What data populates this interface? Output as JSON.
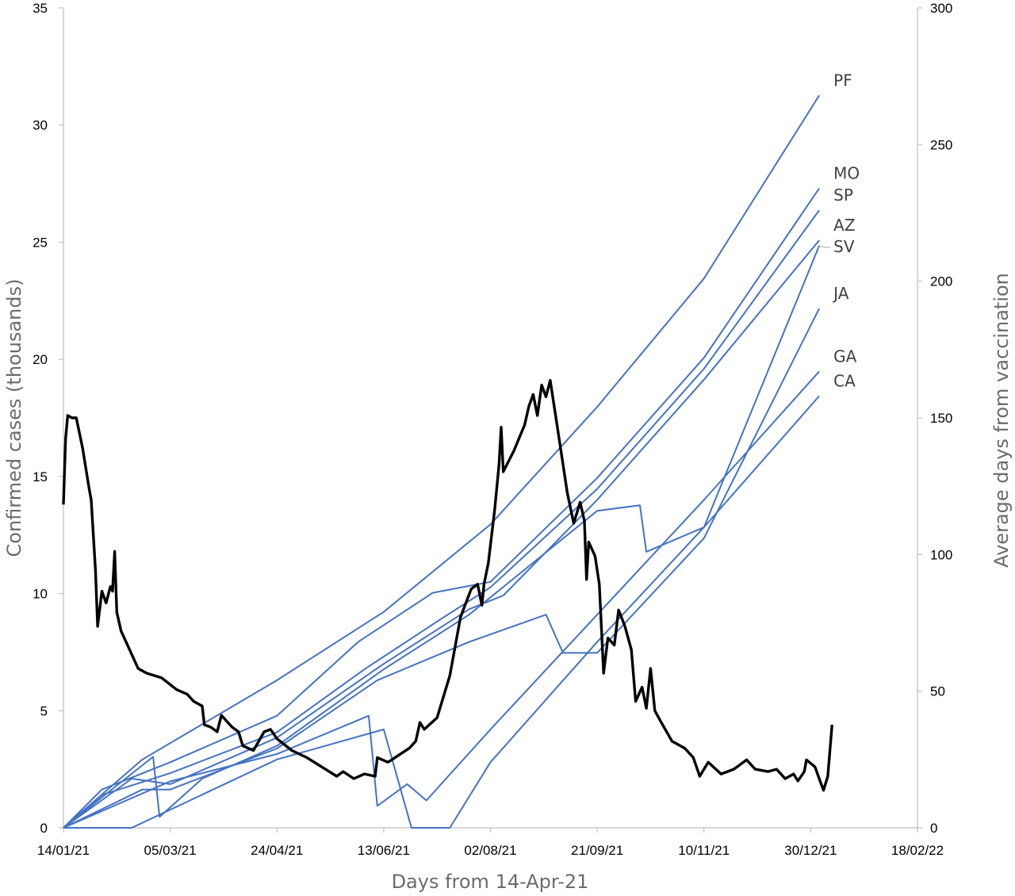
{
  "chart_data": {
    "type": "line",
    "xlabel": "Days from 14-Apr-21",
    "ylabel_left": "Confirmed cases  (thousands)",
    "ylabel_right": "Average days from vaccination",
    "x_tick_labels": [
      "14/01/21",
      "05/03/21",
      "24/04/21",
      "13/06/21",
      "02/08/21",
      "21/09/21",
      "10/11/21",
      "30/12/21",
      "18/02/22"
    ],
    "x_range_dates": [
      "2021-01-14",
      "2022-02-18"
    ],
    "y_left": {
      "min": 0,
      "max": 35,
      "ticks": [
        "0",
        "5",
        "10",
        "15",
        "20",
        "25",
        "30",
        "35"
      ]
    },
    "y_right": {
      "min": 0,
      "max": 300,
      "ticks": [
        "0",
        "50",
        "100",
        "150",
        "200",
        "250",
        "300"
      ]
    },
    "grid": false,
    "colors": {
      "cases": "#000000",
      "vaccines": "#4472c4",
      "axis": "#bfbfbf"
    },
    "cases_series": {
      "axis": "left",
      "points": [
        [
          "2021-01-14",
          13.8
        ],
        [
          "2021-01-15",
          16.6
        ],
        [
          "2021-01-16",
          17.6
        ],
        [
          "2021-01-18",
          17.5
        ],
        [
          "2021-01-20",
          17.5
        ],
        [
          "2021-01-23",
          16.2
        ],
        [
          "2021-01-26",
          14.5
        ],
        [
          "2021-01-27",
          14.0
        ],
        [
          "2021-01-29",
          11.0
        ],
        [
          "2021-01-30",
          8.6
        ],
        [
          "2021-02-01",
          10.1
        ],
        [
          "2021-02-03",
          9.6
        ],
        [
          "2021-02-05",
          10.3
        ],
        [
          "2021-02-06",
          10.1
        ],
        [
          "2021-02-07",
          11.8
        ],
        [
          "2021-02-08",
          9.2
        ],
        [
          "2021-02-10",
          8.4
        ],
        [
          "2021-02-14",
          7.6
        ],
        [
          "2021-02-18",
          6.8
        ],
        [
          "2021-02-22",
          6.6
        ],
        [
          "2021-03-01",
          6.4
        ],
        [
          "2021-03-08",
          5.9
        ],
        [
          "2021-03-13",
          5.7
        ],
        [
          "2021-03-16",
          5.4
        ],
        [
          "2021-03-20",
          5.2
        ],
        [
          "2021-03-21",
          4.4
        ],
        [
          "2021-03-24",
          4.3
        ],
        [
          "2021-03-27",
          4.1
        ],
        [
          "2021-03-29",
          4.8
        ],
        [
          "2021-04-03",
          4.3
        ],
        [
          "2021-04-06",
          4.1
        ],
        [
          "2021-04-08",
          3.5
        ],
        [
          "2021-04-13",
          3.3
        ],
        [
          "2021-04-18",
          4.1
        ],
        [
          "2021-04-21",
          4.2
        ],
        [
          "2021-04-24",
          3.8
        ],
        [
          "2021-05-01",
          3.3
        ],
        [
          "2021-05-08",
          3.0
        ],
        [
          "2021-05-15",
          2.6
        ],
        [
          "2021-05-22",
          2.2
        ],
        [
          "2021-05-25",
          2.4
        ],
        [
          "2021-05-30",
          2.1
        ],
        [
          "2021-06-04",
          2.3
        ],
        [
          "2021-06-09",
          2.2
        ],
        [
          "2021-06-10",
          3.0
        ],
        [
          "2021-06-15",
          2.8
        ],
        [
          "2021-06-20",
          3.1
        ],
        [
          "2021-06-25",
          3.4
        ],
        [
          "2021-06-28",
          3.7
        ],
        [
          "2021-06-30",
          4.5
        ],
        [
          "2021-07-02",
          4.2
        ],
        [
          "2021-07-08",
          4.7
        ],
        [
          "2021-07-14",
          6.5
        ],
        [
          "2021-07-19",
          9.0
        ],
        [
          "2021-07-24",
          10.2
        ],
        [
          "2021-07-27",
          10.4
        ],
        [
          "2021-07-29",
          9.5
        ],
        [
          "2021-07-30",
          10.4
        ],
        [
          "2021-08-01",
          11.3
        ],
        [
          "2021-08-04",
          13.6
        ],
        [
          "2021-08-06",
          15.5
        ],
        [
          "2021-08-07",
          17.1
        ],
        [
          "2021-08-08",
          15.2
        ],
        [
          "2021-08-13",
          16.1
        ],
        [
          "2021-08-18",
          17.2
        ],
        [
          "2021-08-20",
          18.0
        ],
        [
          "2021-08-22",
          18.5
        ],
        [
          "2021-08-24",
          17.6
        ],
        [
          "2021-08-26",
          18.9
        ],
        [
          "2021-08-28",
          18.4
        ],
        [
          "2021-08-30",
          19.1
        ],
        [
          "2021-09-01",
          17.9
        ],
        [
          "2021-09-04",
          16.1
        ],
        [
          "2021-09-07",
          14.3
        ],
        [
          "2021-09-10",
          13.0
        ],
        [
          "2021-09-13",
          13.9
        ],
        [
          "2021-09-15",
          13.1
        ],
        [
          "2021-09-16",
          10.6
        ],
        [
          "2021-09-17",
          12.2
        ],
        [
          "2021-09-20",
          11.6
        ],
        [
          "2021-09-22",
          10.4
        ],
        [
          "2021-09-24",
          6.6
        ],
        [
          "2021-09-26",
          8.1
        ],
        [
          "2021-09-29",
          7.8
        ],
        [
          "2021-10-01",
          9.3
        ],
        [
          "2021-10-04",
          8.6
        ],
        [
          "2021-10-07",
          7.6
        ],
        [
          "2021-10-09",
          5.4
        ],
        [
          "2021-10-12",
          6.0
        ],
        [
          "2021-10-14",
          5.1
        ],
        [
          "2021-10-16",
          6.8
        ],
        [
          "2021-10-18",
          5.0
        ],
        [
          "2021-10-21",
          4.5
        ],
        [
          "2021-10-26",
          3.7
        ],
        [
          "2021-11-01",
          3.4
        ],
        [
          "2021-11-05",
          3.0
        ],
        [
          "2021-11-08",
          2.2
        ],
        [
          "2021-11-12",
          2.8
        ],
        [
          "2021-11-18",
          2.3
        ],
        [
          "2021-11-24",
          2.5
        ],
        [
          "2021-11-30",
          2.9
        ],
        [
          "2021-12-04",
          2.5
        ],
        [
          "2021-12-10",
          2.4
        ],
        [
          "2021-12-14",
          2.5
        ],
        [
          "2021-12-18",
          2.1
        ],
        [
          "2021-12-22",
          2.3
        ],
        [
          "2021-12-24",
          2.0
        ],
        [
          "2021-12-27",
          2.4
        ],
        [
          "2021-12-28",
          2.9
        ],
        [
          "2022-01-01",
          2.6
        ],
        [
          "2022-01-03",
          2.1
        ],
        [
          "2022-01-05",
          1.6
        ],
        [
          "2022-01-07",
          2.2
        ],
        [
          "2022-01-09",
          4.4
        ]
      ]
    },
    "vaccine_series": [
      {
        "name": "PF",
        "axis": "right",
        "points": [
          [
            "2021-01-14",
            0
          ],
          [
            "2021-02-20",
            25
          ],
          [
            "2021-04-24",
            54
          ],
          [
            "2021-06-13",
            79
          ],
          [
            "2021-08-02",
            111
          ],
          [
            "2021-09-21",
            154
          ],
          [
            "2021-11-10",
            201
          ],
          [
            "2022-01-03",
            268
          ]
        ]
      },
      {
        "name": "MO",
        "axis": "right",
        "points": [
          [
            "2021-01-14",
            0
          ],
          [
            "2021-02-01",
            14
          ],
          [
            "2021-03-05",
            24
          ],
          [
            "2021-04-24",
            41
          ],
          [
            "2021-06-01",
            68
          ],
          [
            "2021-07-06",
            86
          ],
          [
            "2021-08-02",
            90
          ],
          [
            "2021-09-21",
            128
          ],
          [
            "2021-11-10",
            172
          ],
          [
            "2022-01-03",
            234
          ]
        ]
      },
      {
        "name": "SP",
        "axis": "right",
        "points": [
          [
            "2021-01-14",
            0
          ],
          [
            "2021-02-01",
            12
          ],
          [
            "2021-03-05",
            20
          ],
          [
            "2021-04-24",
            35
          ],
          [
            "2021-06-04",
            58
          ],
          [
            "2021-07-09",
            76
          ],
          [
            "2021-08-02",
            88
          ],
          [
            "2021-09-21",
            124
          ],
          [
            "2021-11-10",
            168
          ],
          [
            "2022-01-03",
            226
          ]
        ]
      },
      {
        "name": "AZ",
        "axis": "right",
        "points": [
          [
            "2021-01-14",
            0
          ],
          [
            "2021-02-15",
            18
          ],
          [
            "2021-03-05",
            16
          ],
          [
            "2021-04-24",
            33
          ],
          [
            "2021-06-13",
            60
          ],
          [
            "2021-07-23",
            80
          ],
          [
            "2021-08-08",
            85
          ],
          [
            "2021-09-21",
            120
          ],
          [
            "2021-11-10",
            164
          ],
          [
            "2022-01-03",
            215
          ]
        ]
      },
      {
        "name": "SV",
        "axis": "right",
        "points": [
          [
            "2021-01-14",
            0
          ],
          [
            "2021-02-25",
            26
          ],
          [
            "2021-02-28",
            4
          ],
          [
            "2021-03-20",
            18
          ],
          [
            "2021-04-24",
            30
          ],
          [
            "2021-06-13",
            58
          ],
          [
            "2021-07-23",
            78
          ],
          [
            "2021-09-21",
            116
          ],
          [
            "2021-10-11",
            118
          ],
          [
            "2021-10-14",
            101
          ],
          [
            "2021-11-10",
            110
          ],
          [
            "2022-01-03",
            213
          ]
        ]
      },
      {
        "name": "JA",
        "axis": "right",
        "points": [
          [
            "2021-01-14",
            0
          ],
          [
            "2021-02-20",
            14
          ],
          [
            "2021-03-05",
            14
          ],
          [
            "2021-04-24",
            29
          ],
          [
            "2021-06-10",
            54
          ],
          [
            "2021-07-23",
            68
          ],
          [
            "2021-08-28",
            78
          ],
          [
            "2021-09-05",
            64
          ],
          [
            "2021-09-21",
            64
          ],
          [
            "2021-11-10",
            106
          ],
          [
            "2022-01-03",
            190
          ]
        ]
      },
      {
        "name": "GA",
        "axis": "right",
        "points": [
          [
            "2021-01-14",
            0
          ],
          [
            "2021-03-05",
            17
          ],
          [
            "2021-04-24",
            27
          ],
          [
            "2021-06-06",
            41
          ],
          [
            "2021-06-10",
            8
          ],
          [
            "2021-06-24",
            16
          ],
          [
            "2021-07-03",
            10
          ],
          [
            "2021-08-02",
            36
          ],
          [
            "2021-09-21",
            78
          ],
          [
            "2021-11-10",
            120
          ],
          [
            "2022-01-03",
            167
          ]
        ]
      },
      {
        "name": "CA",
        "axis": "right",
        "points": [
          [
            "2021-01-14",
            0
          ],
          [
            "2021-02-15",
            0
          ],
          [
            "2021-04-24",
            25
          ],
          [
            "2021-06-13",
            36
          ],
          [
            "2021-06-26",
            0
          ],
          [
            "2021-07-14",
            0
          ],
          [
            "2021-08-02",
            24
          ],
          [
            "2021-09-21",
            68
          ],
          [
            "2021-11-10",
            110
          ],
          [
            "2022-01-03",
            158
          ]
        ]
      }
    ]
  }
}
